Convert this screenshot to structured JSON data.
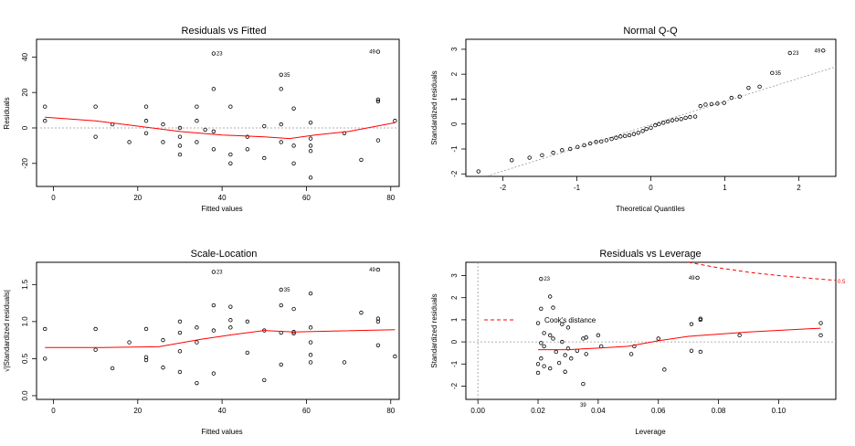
{
  "colors": {
    "smoother": "#ff0000",
    "reference": "#999999",
    "points": "#000000"
  },
  "chart_data": [
    {
      "type": "scatter",
      "name": "residuals-vs-fitted",
      "title": "Residuals vs Fitted",
      "xlabel": "Fitted values",
      "ylabel": "Residuals",
      "xlim": [
        -4,
        82
      ],
      "ylim": [
        -33,
        50
      ],
      "xticks": [
        0,
        20,
        40,
        60,
        80
      ],
      "xtick_labels": [
        "0",
        "20",
        "40",
        "60",
        "80"
      ],
      "yticks": [
        -20,
        0,
        20,
        40
      ],
      "ytick_labels": [
        "-20",
        "0",
        "20",
        "40"
      ],
      "hline": 0,
      "points": [
        [
          -2,
          12
        ],
        [
          -2,
          4
        ],
        [
          10,
          12
        ],
        [
          10,
          -5
        ],
        [
          14,
          2
        ],
        [
          18,
          -8
        ],
        [
          22,
          12
        ],
        [
          22,
          4
        ],
        [
          22,
          -3
        ],
        [
          26,
          2
        ],
        [
          26,
          -8
        ],
        [
          30,
          0
        ],
        [
          30,
          -5
        ],
        [
          30,
          -10
        ],
        [
          30,
          -15
        ],
        [
          34,
          12
        ],
        [
          34,
          4
        ],
        [
          34,
          -8
        ],
        [
          36,
          -1
        ],
        [
          38,
          42
        ],
        [
          38,
          22
        ],
        [
          38,
          -2
        ],
        [
          38,
          -12
        ],
        [
          42,
          12
        ],
        [
          42,
          -15
        ],
        [
          42,
          -20
        ],
        [
          46,
          -5
        ],
        [
          46,
          -12
        ],
        [
          50,
          1
        ],
        [
          50,
          -17
        ],
        [
          54,
          30
        ],
        [
          54,
          22
        ],
        [
          54,
          2
        ],
        [
          54,
          -8
        ],
        [
          57,
          11
        ],
        [
          57,
          -10
        ],
        [
          57,
          -20
        ],
        [
          61,
          -6
        ],
        [
          61,
          -10
        ],
        [
          61,
          -13
        ],
        [
          61,
          -28
        ],
        [
          61,
          3
        ],
        [
          69,
          -3
        ],
        [
          73,
          -18
        ],
        [
          77,
          43
        ],
        [
          77,
          16
        ],
        [
          77,
          15
        ],
        [
          77,
          -7
        ],
        [
          81,
          4
        ]
      ],
      "smooth": [
        [
          -2,
          6
        ],
        [
          10,
          4
        ],
        [
          20,
          1
        ],
        [
          30,
          -2
        ],
        [
          40,
          -4
        ],
        [
          50,
          -5
        ],
        [
          56,
          -6
        ],
        [
          62,
          -4
        ],
        [
          70,
          -2
        ],
        [
          81,
          3
        ]
      ],
      "labels": [
        {
          "text": "23",
          "x": 38,
          "y": 42
        },
        {
          "text": "35",
          "x": 54,
          "y": 30
        },
        {
          "text": "49",
          "x": 77,
          "y": 43
        }
      ]
    },
    {
      "type": "scatter",
      "name": "normal-qq",
      "title": "Normal Q-Q",
      "xlabel": "Theoretical Quantiles",
      "ylabel": "Standardized residuals",
      "xlim": [
        -2.5,
        2.5
      ],
      "ylim": [
        -2.1,
        3.4
      ],
      "xticks": [
        -2,
        -1,
        0,
        1,
        2
      ],
      "xtick_labels": [
        "-2",
        "-1",
        "0",
        "1",
        "2"
      ],
      "yticks": [
        -2,
        -1,
        0,
        1,
        2,
        3
      ],
      "ytick_labels": [
        "-2",
        "-1",
        "0",
        "1",
        "2",
        "3"
      ],
      "refline": [
        [
          -2.5,
          -2.35
        ],
        [
          2.5,
          2.3
        ]
      ],
      "points": [
        [
          -2.33,
          -1.9
        ],
        [
          -1.88,
          -1.45
        ],
        [
          -1.64,
          -1.35
        ],
        [
          -1.47,
          -1.25
        ],
        [
          -1.32,
          -1.15
        ],
        [
          -1.2,
          -1.05
        ],
        [
          -1.09,
          -1.0
        ],
        [
          -0.99,
          -0.92
        ],
        [
          -0.9,
          -0.85
        ],
        [
          -0.82,
          -0.78
        ],
        [
          -0.74,
          -0.72
        ],
        [
          -0.67,
          -0.7
        ],
        [
          -0.6,
          -0.65
        ],
        [
          -0.53,
          -0.6
        ],
        [
          -0.47,
          -0.55
        ],
        [
          -0.41,
          -0.5
        ],
        [
          -0.35,
          -0.48
        ],
        [
          -0.29,
          -0.45
        ],
        [
          -0.23,
          -0.4
        ],
        [
          -0.17,
          -0.35
        ],
        [
          -0.11,
          -0.28
        ],
        [
          -0.06,
          -0.2
        ],
        [
          0.0,
          -0.15
        ],
        [
          0.06,
          -0.05
        ],
        [
          0.11,
          0.0
        ],
        [
          0.17,
          0.05
        ],
        [
          0.23,
          0.1
        ],
        [
          0.29,
          0.15
        ],
        [
          0.35,
          0.18
        ],
        [
          0.41,
          0.2
        ],
        [
          0.47,
          0.25
        ],
        [
          0.53,
          0.28
        ],
        [
          0.6,
          0.3
        ],
        [
          0.67,
          0.72
        ],
        [
          0.74,
          0.78
        ],
        [
          0.82,
          0.8
        ],
        [
          0.9,
          0.82
        ],
        [
          0.99,
          0.85
        ],
        [
          1.09,
          1.05
        ],
        [
          1.2,
          1.1
        ],
        [
          1.32,
          1.45
        ],
        [
          1.47,
          1.5
        ],
        [
          1.64,
          2.05
        ],
        [
          1.88,
          2.85
        ],
        [
          2.33,
          2.95
        ]
      ],
      "labels": [
        {
          "text": "23",
          "x": 1.88,
          "y": 2.85
        },
        {
          "text": "35",
          "x": 1.64,
          "y": 2.05
        },
        {
          "text": "49",
          "x": 2.33,
          "y": 2.95
        }
      ]
    },
    {
      "type": "scatter",
      "name": "scale-location",
      "title": "Scale-Location",
      "xlabel": "Fitted values",
      "ylabel": "√|Standardized residuals|",
      "xlim": [
        -4,
        82
      ],
      "ylim": [
        -0.05,
        1.8
      ],
      "xticks": [
        0,
        20,
        40,
        60,
        80
      ],
      "xtick_labels": [
        "0",
        "20",
        "40",
        "60",
        "80"
      ],
      "yticks": [
        0.0,
        0.5,
        1.0,
        1.5
      ],
      "ytick_labels": [
        "0.0",
        "0.5",
        "1.0",
        "1.5"
      ],
      "points": [
        [
          -2,
          0.9
        ],
        [
          -2,
          0.5
        ],
        [
          10,
          0.9
        ],
        [
          10,
          0.62
        ],
        [
          14,
          0.37
        ],
        [
          18,
          0.72
        ],
        [
          22,
          0.9
        ],
        [
          22,
          0.52
        ],
        [
          22,
          0.48
        ],
        [
          26,
          0.75
        ],
        [
          26,
          0.38
        ],
        [
          30,
          1.0
        ],
        [
          30,
          0.85
        ],
        [
          30,
          0.6
        ],
        [
          30,
          0.32
        ],
        [
          34,
          0.92
        ],
        [
          34,
          0.72
        ],
        [
          34,
          0.17
        ],
        [
          38,
          1.67
        ],
        [
          38,
          1.22
        ],
        [
          38,
          0.88
        ],
        [
          38,
          0.3
        ],
        [
          42,
          1.2
        ],
        [
          42,
          1.02
        ],
        [
          42,
          0.92
        ],
        [
          46,
          1.0
        ],
        [
          46,
          0.58
        ],
        [
          50,
          0.88
        ],
        [
          50,
          0.21
        ],
        [
          54,
          1.43
        ],
        [
          54,
          1.22
        ],
        [
          54,
          0.85
        ],
        [
          54,
          0.42
        ],
        [
          57,
          1.17
        ],
        [
          57,
          0.86
        ],
        [
          57,
          0.84
        ],
        [
          61,
          1.38
        ],
        [
          61,
          0.92
        ],
        [
          61,
          0.72
        ],
        [
          61,
          0.55
        ],
        [
          61,
          0.45
        ],
        [
          69,
          0.45
        ],
        [
          73,
          1.12
        ],
        [
          77,
          1.7
        ],
        [
          77,
          1.04
        ],
        [
          77,
          1.0
        ],
        [
          77,
          0.68
        ],
        [
          81,
          0.53
        ]
      ],
      "smooth": [
        [
          -2,
          0.65
        ],
        [
          12,
          0.65
        ],
        [
          25,
          0.66
        ],
        [
          35,
          0.76
        ],
        [
          42,
          0.82
        ],
        [
          50,
          0.88
        ],
        [
          57,
          0.86
        ],
        [
          65,
          0.87
        ],
        [
          81,
          0.89
        ]
      ],
      "labels": [
        {
          "text": "23",
          "x": 38,
          "y": 1.67
        },
        {
          "text": "35",
          "x": 54,
          "y": 1.43
        },
        {
          "text": "49",
          "x": 77,
          "y": 1.7
        }
      ]
    },
    {
      "type": "scatter",
      "name": "residuals-vs-leverage",
      "title": "Residuals vs Leverage",
      "xlabel": "Leverage",
      "ylabel": "Standardized residuals",
      "xlim": [
        -0.004,
        0.119
      ],
      "ylim": [
        -2.6,
        3.6
      ],
      "xticks": [
        0.0,
        0.02,
        0.04,
        0.06,
        0.08,
        0.1
      ],
      "xtick_labels": [
        "0.00",
        "0.02",
        "0.04",
        "0.06",
        "0.08",
        "0.10"
      ],
      "yticks": [
        -2,
        -1,
        0,
        1,
        2,
        3
      ],
      "ytick_labels": [
        "-2",
        "-1",
        "0",
        "1",
        "2",
        "3"
      ],
      "hline": 0,
      "vline": 0,
      "points": [
        [
          0.021,
          2.85
        ],
        [
          0.024,
          2.05
        ],
        [
          0.021,
          1.5
        ],
        [
          0.025,
          1.55
        ],
        [
          0.02,
          0.85
        ],
        [
          0.022,
          0.4
        ],
        [
          0.024,
          0.3
        ],
        [
          0.025,
          0.15
        ],
        [
          0.021,
          -0.05
        ],
        [
          0.022,
          -0.2
        ],
        [
          0.026,
          -0.45
        ],
        [
          0.021,
          -0.75
        ],
        [
          0.02,
          -1.0
        ],
        [
          0.022,
          -1.1
        ],
        [
          0.02,
          -1.4
        ],
        [
          0.024,
          -1.2
        ],
        [
          0.027,
          -0.95
        ],
        [
          0.028,
          0.8
        ],
        [
          0.03,
          0.65
        ],
        [
          0.028,
          0.0
        ],
        [
          0.03,
          -0.3
        ],
        [
          0.029,
          -0.6
        ],
        [
          0.029,
          -1.35
        ],
        [
          0.031,
          -0.75
        ],
        [
          0.033,
          -0.4
        ],
        [
          0.035,
          0.15
        ],
        [
          0.035,
          -1.9
        ],
        [
          0.036,
          0.2
        ],
        [
          0.036,
          -0.55
        ],
        [
          0.04,
          0.3
        ],
        [
          0.041,
          -0.2
        ],
        [
          0.051,
          -0.55
        ],
        [
          0.052,
          -0.2
        ],
        [
          0.06,
          0.15
        ],
        [
          0.062,
          -1.25
        ],
        [
          0.071,
          0.8
        ],
        [
          0.071,
          -0.4
        ],
        [
          0.073,
          2.9
        ],
        [
          0.074,
          1.05
        ],
        [
          0.074,
          1.0
        ],
        [
          0.074,
          -0.45
        ],
        [
          0.087,
          0.3
        ],
        [
          0.114,
          0.85
        ],
        [
          0.114,
          0.3
        ]
      ],
      "smooth": [
        [
          0.02,
          -0.35
        ],
        [
          0.03,
          -0.35
        ],
        [
          0.04,
          -0.28
        ],
        [
          0.05,
          -0.2
        ],
        [
          0.06,
          0.05
        ],
        [
          0.07,
          0.25
        ],
        [
          0.08,
          0.35
        ],
        [
          0.09,
          0.45
        ],
        [
          0.1,
          0.52
        ],
        [
          0.114,
          0.62
        ]
      ],
      "cooks_curve": [
        [
          0.07,
          3.6
        ],
        [
          0.08,
          3.35
        ],
        [
          0.09,
          3.15
        ],
        [
          0.1,
          3.0
        ],
        [
          0.11,
          2.88
        ],
        [
          0.119,
          2.78
        ]
      ],
      "cooks_label": "0.5",
      "legend": "Cook's distance",
      "labels": [
        {
          "text": "23",
          "x": 0.021,
          "y": 2.85
        },
        {
          "text": "49",
          "x": 0.073,
          "y": 2.9
        },
        {
          "text": "39",
          "x": 0.035,
          "y": -2.6
        }
      ]
    }
  ]
}
